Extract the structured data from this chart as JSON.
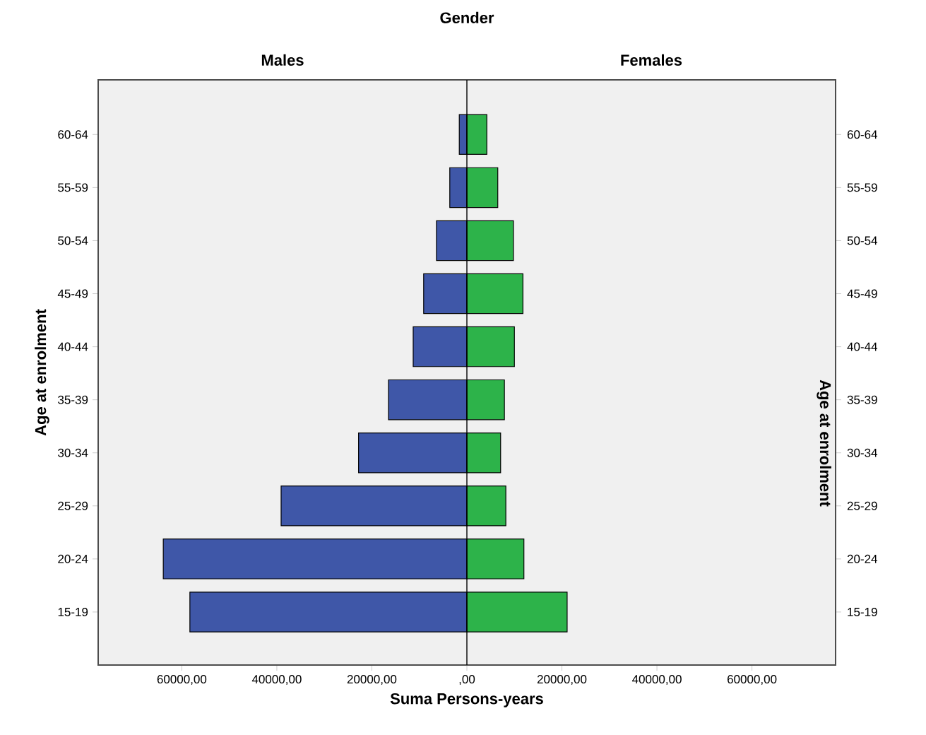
{
  "chart_data": {
    "type": "bar",
    "orientation": "horizontal",
    "stacked": true,
    "title": "Gender",
    "xlabel": "Suma Persons-years",
    "ylabel": "Age at enrolment",
    "y2label": "Age at enrolment",
    "categories": [
      "60-64",
      "55-59",
      "50-54",
      "45-49",
      "40-44",
      "35-39",
      "30-34",
      "25-29",
      "20-24",
      "15-19"
    ],
    "series": [
      {
        "name": "Males",
        "color": "#3f57a8",
        "values": [
          -1600,
          -3600,
          -6400,
          -9100,
          -11300,
          -16500,
          -22800,
          -39100,
          -63900,
          -58300
        ]
      },
      {
        "name": "Females",
        "color": "#2db34a",
        "values": [
          4200,
          6500,
          9800,
          11800,
          10000,
          7900,
          7100,
          8200,
          12000,
          21100
        ]
      }
    ],
    "xlim": [
      -77600,
      77600
    ],
    "xticks": [
      {
        "value": -60000,
        "label": "60000,00"
      },
      {
        "value": -40000,
        "label": "40000,00"
      },
      {
        "value": -20000,
        "label": "20000,00"
      },
      {
        "value": 0,
        "label": ",00"
      },
      {
        "value": 20000,
        "label": "20000,00"
      },
      {
        "value": 40000,
        "label": "40000,00"
      },
      {
        "value": 60000,
        "label": "60000,00"
      }
    ],
    "ref_lines": [
      {
        "axis": "x",
        "value": 0,
        "color": "#000000"
      }
    ]
  }
}
